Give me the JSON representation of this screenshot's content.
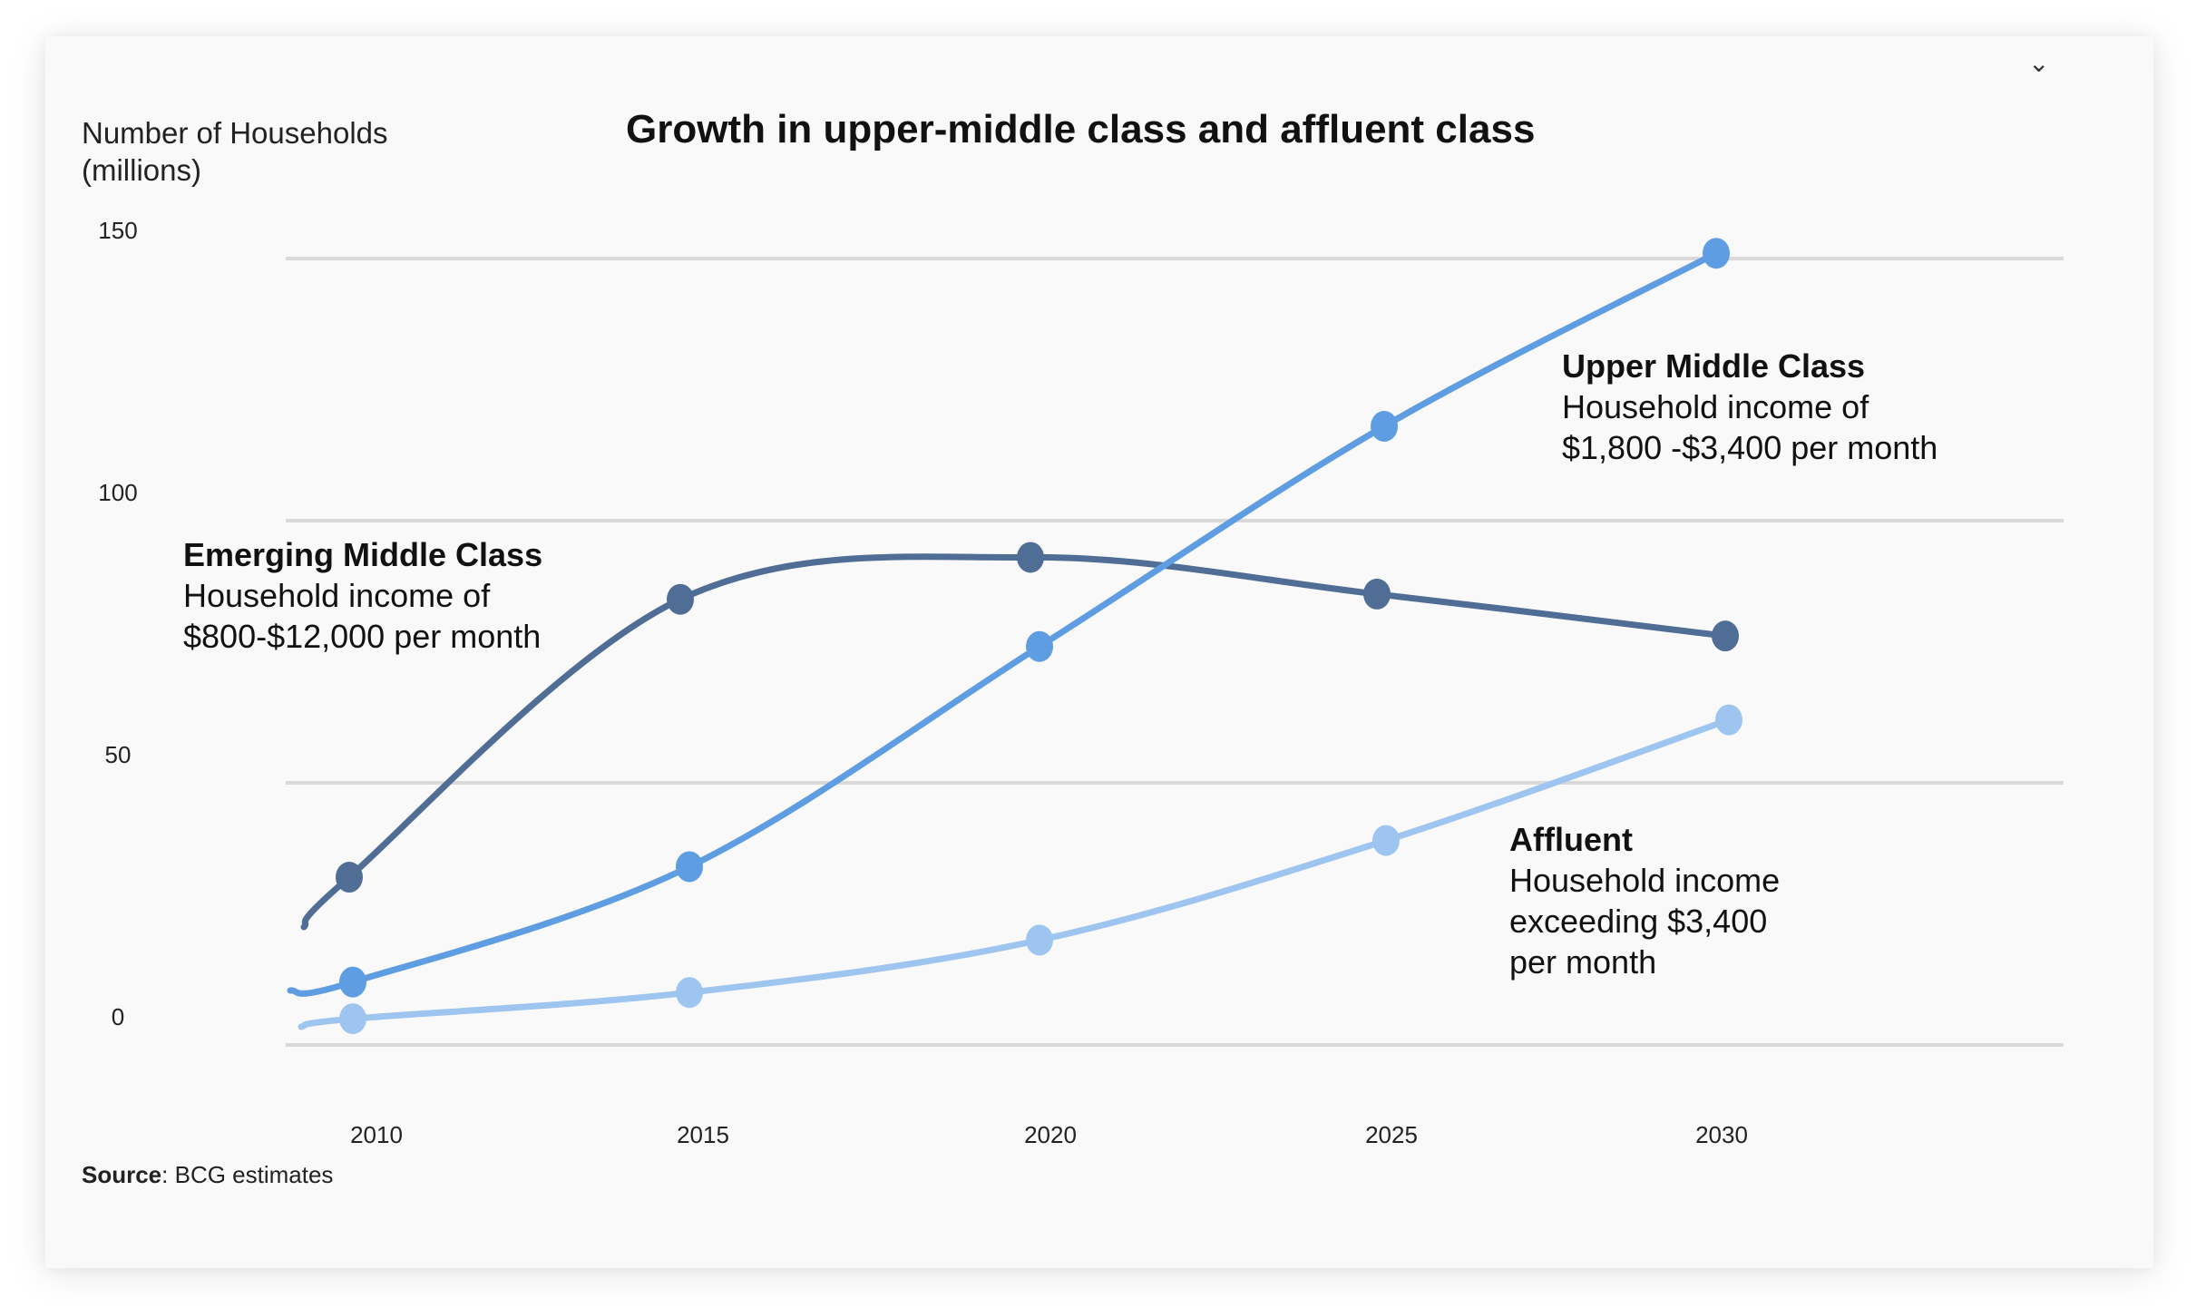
{
  "header": {
    "menu_icon": "chevron-down-icon"
  },
  "chart_data": {
    "type": "line",
    "title": "Growth in upper-middle class and affluent class",
    "ylabel": "Number of Households\n(millions)",
    "xlabel": "",
    "categories": [
      "2010",
      "2015",
      "2020",
      "2025",
      "2030"
    ],
    "yticks": [
      "150",
      "100",
      "50",
      "0"
    ],
    "ylim": [
      0,
      150
    ],
    "grid": true,
    "legend": "inline annotations",
    "series": [
      {
        "key": "emerging",
        "values": [
          32,
          85,
          93,
          86,
          78
        ],
        "color": "#4f6d95",
        "annotation": {
          "title": "Emerging Middle Class",
          "lines": [
            "Household income of",
            "$800-$12,000 per month"
          ]
        }
      },
      {
        "key": "upper",
        "values": [
          12,
          34,
          76,
          118,
          151
        ],
        "color": "#5f9de3",
        "annotation": {
          "title": "Upper Middle Class",
          "lines": [
            "Household income of",
            "$1,800 -$3,400 per month"
          ]
        }
      },
      {
        "key": "affluent",
        "values": [
          5,
          10,
          20,
          39,
          62
        ],
        "color": "#9dc5f0",
        "annotation": {
          "title": "Affluent",
          "lines": [
            "Household income",
            "exceeding $3,400",
            "per month"
          ]
        }
      }
    ]
  },
  "source": {
    "label": "Source",
    "text": ": BCG estimates"
  }
}
